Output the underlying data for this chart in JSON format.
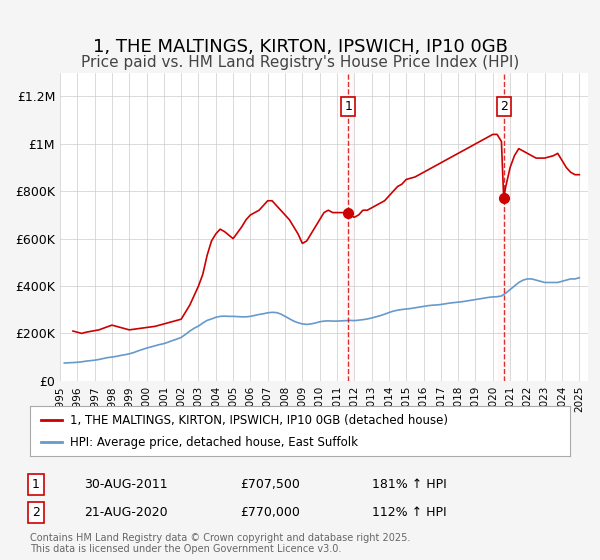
{
  "title": "1, THE MALTINGS, KIRTON, IPSWICH, IP10 0GB",
  "subtitle": "Price paid vs. HM Land Registry's House Price Index (HPI)",
  "title_fontsize": 13,
  "subtitle_fontsize": 11,
  "background_color": "#f5f5f5",
  "plot_bg_color": "#ffffff",
  "red_line_color": "#cc0000",
  "blue_line_color": "#6699cc",
  "grid_color": "#cccccc",
  "ylim": [
    0,
    1300000
  ],
  "yticks": [
    0,
    200000,
    400000,
    600000,
    800000,
    1000000,
    1200000
  ],
  "ytick_labels": [
    "£0",
    "£200K",
    "£400K",
    "£600K",
    "£800K",
    "£1M",
    "£1.2M"
  ],
  "xlim_start": 1995.0,
  "xlim_end": 2025.5,
  "marker1_x": 2011.65,
  "marker1_y": 707500,
  "marker2_x": 2020.63,
  "marker2_y": 770000,
  "marker1_label": "1",
  "marker2_label": "2",
  "annotation1_date": "30-AUG-2011",
  "annotation1_price": "£707,500",
  "annotation1_hpi": "181% ↑ HPI",
  "annotation2_date": "21-AUG-2020",
  "annotation2_price": "£770,000",
  "annotation2_hpi": "112% ↑ HPI",
  "legend_line1": "1, THE MALTINGS, KIRTON, IPSWICH, IP10 0GB (detached house)",
  "legend_line2": "HPI: Average price, detached house, East Suffolk",
  "footer": "Contains HM Land Registry data © Crown copyright and database right 2025.\nThis data is licensed under the Open Government Licence v3.0.",
  "hpi_data": {
    "years": [
      1995.25,
      1995.5,
      1995.75,
      1996.0,
      1996.25,
      1996.5,
      1996.75,
      1997.0,
      1997.25,
      1997.5,
      1997.75,
      1998.0,
      1998.25,
      1998.5,
      1998.75,
      1999.0,
      1999.25,
      1999.5,
      1999.75,
      2000.0,
      2000.25,
      2000.5,
      2000.75,
      2001.0,
      2001.25,
      2001.5,
      2001.75,
      2002.0,
      2002.25,
      2002.5,
      2002.75,
      2003.0,
      2003.25,
      2003.5,
      2003.75,
      2004.0,
      2004.25,
      2004.5,
      2004.75,
      2005.0,
      2005.25,
      2005.5,
      2005.75,
      2006.0,
      2006.25,
      2006.5,
      2006.75,
      2007.0,
      2007.25,
      2007.5,
      2007.75,
      2008.0,
      2008.25,
      2008.5,
      2008.75,
      2009.0,
      2009.25,
      2009.5,
      2009.75,
      2010.0,
      2010.25,
      2010.5,
      2010.75,
      2011.0,
      2011.25,
      2011.5,
      2011.75,
      2012.0,
      2012.25,
      2012.5,
      2012.75,
      2013.0,
      2013.25,
      2013.5,
      2013.75,
      2014.0,
      2014.25,
      2014.5,
      2014.75,
      2015.0,
      2015.25,
      2015.5,
      2015.75,
      2016.0,
      2016.25,
      2016.5,
      2016.75,
      2017.0,
      2017.25,
      2017.5,
      2017.75,
      2018.0,
      2018.25,
      2018.5,
      2018.75,
      2019.0,
      2019.25,
      2019.5,
      2019.75,
      2020.0,
      2020.25,
      2020.5,
      2020.75,
      2021.0,
      2021.25,
      2021.5,
      2021.75,
      2022.0,
      2022.25,
      2022.5,
      2022.75,
      2023.0,
      2023.25,
      2023.5,
      2023.75,
      2024.0,
      2024.25,
      2024.5,
      2024.75,
      2025.0
    ],
    "values": [
      75000,
      76000,
      77000,
      78000,
      80000,
      83000,
      85000,
      87000,
      90000,
      94000,
      98000,
      100000,
      103000,
      107000,
      110000,
      114000,
      119000,
      126000,
      132000,
      138000,
      143000,
      148000,
      153000,
      157000,
      163000,
      170000,
      176000,
      183000,
      196000,
      210000,
      222000,
      231000,
      244000,
      255000,
      261000,
      268000,
      272000,
      273000,
      272000,
      272000,
      271000,
      270000,
      270000,
      272000,
      276000,
      280000,
      283000,
      287000,
      289000,
      288000,
      282000,
      272000,
      262000,
      252000,
      245000,
      240000,
      238000,
      240000,
      244000,
      249000,
      252000,
      253000,
      252000,
      252000,
      253000,
      254000,
      255000,
      254000,
      256000,
      258000,
      261000,
      265000,
      270000,
      275000,
      281000,
      288000,
      294000,
      298000,
      301000,
      303000,
      305000,
      308000,
      311000,
      314000,
      317000,
      319000,
      320000,
      322000,
      325000,
      328000,
      330000,
      332000,
      334000,
      337000,
      340000,
      343000,
      346000,
      349000,
      352000,
      354000,
      355000,
      358000,
      370000,
      385000,
      400000,
      415000,
      425000,
      430000,
      430000,
      425000,
      420000,
      415000,
      415000,
      415000,
      415000,
      420000,
      425000,
      430000,
      430000,
      435000
    ]
  },
  "price_data": {
    "years": [
      1995.75,
      1996.25,
      1996.5,
      1997.25,
      1998.0,
      1999.0,
      1999.5,
      2000.5,
      2001.0,
      2002.0,
      2002.5,
      2003.0,
      2003.25,
      2003.5,
      2003.75,
      2004.0,
      2004.25,
      2004.5,
      2005.0,
      2005.5,
      2005.75,
      2006.0,
      2006.5,
      2007.0,
      2007.25,
      2007.5,
      2008.0,
      2008.25,
      2008.75,
      2009.0,
      2009.25,
      2009.5,
      2009.75,
      2010.0,
      2010.25,
      2010.5,
      2010.75,
      2011.0,
      2011.25,
      2011.5,
      2011.65,
      2011.75,
      2012.0,
      2012.25,
      2012.5,
      2012.75,
      2013.0,
      2013.5,
      2013.75,
      2014.0,
      2014.25,
      2014.5,
      2014.75,
      2015.0,
      2015.5,
      2015.75,
      2016.0,
      2016.5,
      2016.75,
      2017.0,
      2017.25,
      2017.5,
      2017.75,
      2018.0,
      2018.25,
      2018.5,
      2018.75,
      2019.0,
      2019.25,
      2019.5,
      2019.75,
      2020.0,
      2020.25,
      2020.5,
      2020.63,
      2020.75,
      2021.0,
      2021.25,
      2021.5,
      2021.75,
      2022.0,
      2022.25,
      2022.5,
      2022.75,
      2023.0,
      2023.5,
      2023.75,
      2024.0,
      2024.25,
      2024.5,
      2024.75,
      2025.0
    ],
    "values": [
      210000,
      200000,
      205000,
      215000,
      235000,
      215000,
      220000,
      230000,
      240000,
      260000,
      320000,
      400000,
      450000,
      530000,
      590000,
      620000,
      640000,
      630000,
      600000,
      650000,
      680000,
      700000,
      720000,
      760000,
      760000,
      740000,
      700000,
      680000,
      620000,
      580000,
      590000,
      620000,
      650000,
      680000,
      710000,
      720000,
      710000,
      710000,
      710000,
      710000,
      707500,
      700000,
      690000,
      700000,
      720000,
      720000,
      730000,
      750000,
      760000,
      780000,
      800000,
      820000,
      830000,
      850000,
      860000,
      870000,
      880000,
      900000,
      910000,
      920000,
      930000,
      940000,
      950000,
      960000,
      970000,
      980000,
      990000,
      1000000,
      1010000,
      1020000,
      1030000,
      1040000,
      1040000,
      1010000,
      770000,
      820000,
      900000,
      950000,
      980000,
      970000,
      960000,
      950000,
      940000,
      940000,
      940000,
      950000,
      960000,
      930000,
      900000,
      880000,
      870000,
      870000
    ]
  }
}
